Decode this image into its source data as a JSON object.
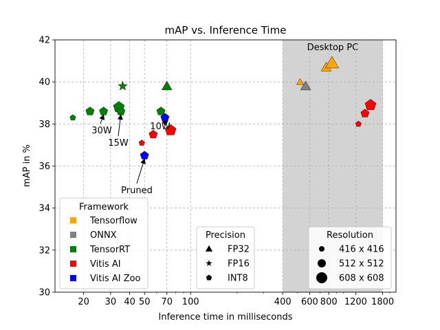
{
  "chart_data": {
    "type": "scatter",
    "title": "mAP vs. Inference Time",
    "xlabel": "Inference time in milliseconds",
    "ylabel": "mAP in %",
    "xscale": "log",
    "xlim": [
      13,
      2200
    ],
    "ylim": [
      30,
      42
    ],
    "x_ticks": [
      20,
      30,
      40,
      50,
      70,
      100,
      400,
      600,
      800,
      1200,
      1800
    ],
    "x_tick_labels": [
      "20",
      "30",
      "40",
      "50",
      "70",
      "100",
      "400",
      "600",
      "800",
      "1200",
      "1800"
    ],
    "y_ticks": [
      30,
      32,
      34,
      36,
      38,
      40,
      42
    ],
    "y_tick_labels": [
      "30",
      "32",
      "34",
      "36",
      "38",
      "40",
      "42"
    ],
    "grid": true,
    "shaded_region": {
      "x_start": 400,
      "x_end": 1800,
      "label": "Desktop PC",
      "color": "#d3d3d3"
    },
    "frameworks": [
      {
        "name": "Tensorflow",
        "color": "#ffa500"
      },
      {
        "name": "ONNX",
        "color": "#808080"
      },
      {
        "name": "TensorRT",
        "color": "#008000"
      },
      {
        "name": "Vitis AI",
        "color": "#ff0000"
      },
      {
        "name": "Vitis AI Zoo",
        "color": "#0000ff"
      }
    ],
    "precisions": [
      {
        "name": "FP32",
        "marker": "triangle"
      },
      {
        "name": "FP16",
        "marker": "star"
      },
      {
        "name": "INT8",
        "marker": "pentagon"
      }
    ],
    "resolutions": [
      {
        "name": "416 x 416",
        "size": "small"
      },
      {
        "name": "512 x 512",
        "size": "medium"
      },
      {
        "name": "608 x 608",
        "size": "large"
      }
    ],
    "legends": {
      "framework_title": "Framework",
      "precision_title": "Precision",
      "resolution_title": "Resolution",
      "framework_position": "lower-left",
      "precision_position": "lower-center",
      "resolution_position": "lower-right"
    },
    "points": [
      {
        "framework": "Tensorflow",
        "precision": "FP32",
        "resolution": "416 x 416",
        "x": 520,
        "y": 40.0
      },
      {
        "framework": "Tensorflow",
        "precision": "FP32",
        "resolution": "512 x 512",
        "x": 770,
        "y": 40.7
      },
      {
        "framework": "Tensorflow",
        "precision": "FP32",
        "resolution": "608 x 608",
        "x": 840,
        "y": 40.9
      },
      {
        "framework": "ONNX",
        "precision": "FP32",
        "resolution": "512 x 512",
        "x": 565,
        "y": 39.8
      },
      {
        "framework": "TensorRT",
        "precision": "INT8",
        "resolution": "416 x 416",
        "x": 17,
        "y": 38.3
      },
      {
        "framework": "TensorRT",
        "precision": "INT8",
        "resolution": "512 x 512",
        "x": 22,
        "y": 38.6
      },
      {
        "framework": "TensorRT",
        "precision": "INT8",
        "resolution": "512 x 512",
        "x": 27,
        "y": 38.6
      },
      {
        "framework": "TensorRT",
        "precision": "INT8",
        "resolution": "608 x 608",
        "x": 34,
        "y": 38.8
      },
      {
        "framework": "TensorRT",
        "precision": "INT8",
        "resolution": "512 x 512",
        "x": 35,
        "y": 38.6
      },
      {
        "framework": "TensorRT",
        "precision": "FP16",
        "resolution": "512 x 512",
        "x": 36,
        "y": 39.8
      },
      {
        "framework": "TensorRT",
        "precision": "INT8",
        "resolution": "512 x 512",
        "x": 64,
        "y": 38.6
      },
      {
        "framework": "TensorRT",
        "precision": "FP32",
        "resolution": "512 x 512",
        "x": 70,
        "y": 39.8
      },
      {
        "framework": "Vitis AI",
        "precision": "INT8",
        "resolution": "416 x 416",
        "x": 48,
        "y": 37.1
      },
      {
        "framework": "Vitis AI",
        "precision": "INT8",
        "resolution": "512 x 512",
        "x": 57,
        "y": 37.5
      },
      {
        "framework": "Vitis AI",
        "precision": "INT8",
        "resolution": "608 x 608",
        "x": 74,
        "y": 37.7
      },
      {
        "framework": "Vitis AI",
        "precision": "INT8",
        "resolution": "416 x 416",
        "x": 1250,
        "y": 38.0
      },
      {
        "framework": "Vitis AI",
        "precision": "INT8",
        "resolution": "512 x 512",
        "x": 1380,
        "y": 38.5
      },
      {
        "framework": "Vitis AI",
        "precision": "INT8",
        "resolution": "608 x 608",
        "x": 1500,
        "y": 38.9
      },
      {
        "framework": "Vitis AI Zoo",
        "precision": "INT8",
        "resolution": "512 x 512",
        "x": 50,
        "y": 36.5
      },
      {
        "framework": "Vitis AI Zoo",
        "precision": "INT8",
        "resolution": "512 x 512",
        "x": 68,
        "y": 38.3
      }
    ],
    "annotations": [
      {
        "text": "30W",
        "arrow_to": [
          27,
          38.6
        ]
      },
      {
        "text": "15W",
        "arrow_to": [
          35,
          38.6
        ]
      },
      {
        "text": "10W",
        "arrow_to": [
          68,
          38.3
        ]
      },
      {
        "text": "Pruned",
        "arrow_to": [
          50,
          36.5
        ]
      }
    ]
  }
}
